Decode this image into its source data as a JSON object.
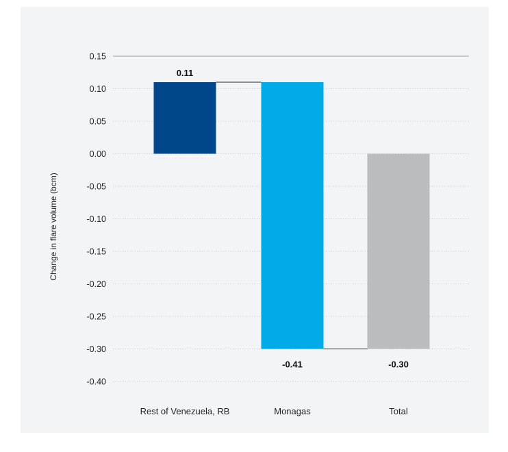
{
  "chart_data": {
    "type": "bar",
    "subtype": "waterfall",
    "ylabel": "Change in flare volume (bcm)",
    "xlabel": "",
    "title": "",
    "y_tick_labels": [
      "0.15",
      "0.10",
      "0.05",
      "0.00",
      "-0.05",
      "-0.10",
      "-0.15",
      "-0.20",
      "-0.25",
      "-0.30",
      "-0.40"
    ],
    "bars": [
      {
        "category": "Rest of Venezuela, RB",
        "value": 0.11,
        "value_label": "0.11",
        "start": 0.0,
        "end": 0.11,
        "color": "#00468b"
      },
      {
        "category": "Monagas",
        "value": -0.41,
        "value_label": "-0.41",
        "start": 0.11,
        "end": -0.3,
        "color": "#00abe7"
      },
      {
        "category": "Total",
        "value": -0.3,
        "value_label": "-0.30",
        "start": 0.0,
        "end": -0.3,
        "color": "#bbbcbe"
      }
    ],
    "grid": true,
    "legend": "none",
    "colors": {
      "panel_background": "#f3f4f6",
      "gridline": "#c8c8c8",
      "connector": "#222222"
    }
  }
}
